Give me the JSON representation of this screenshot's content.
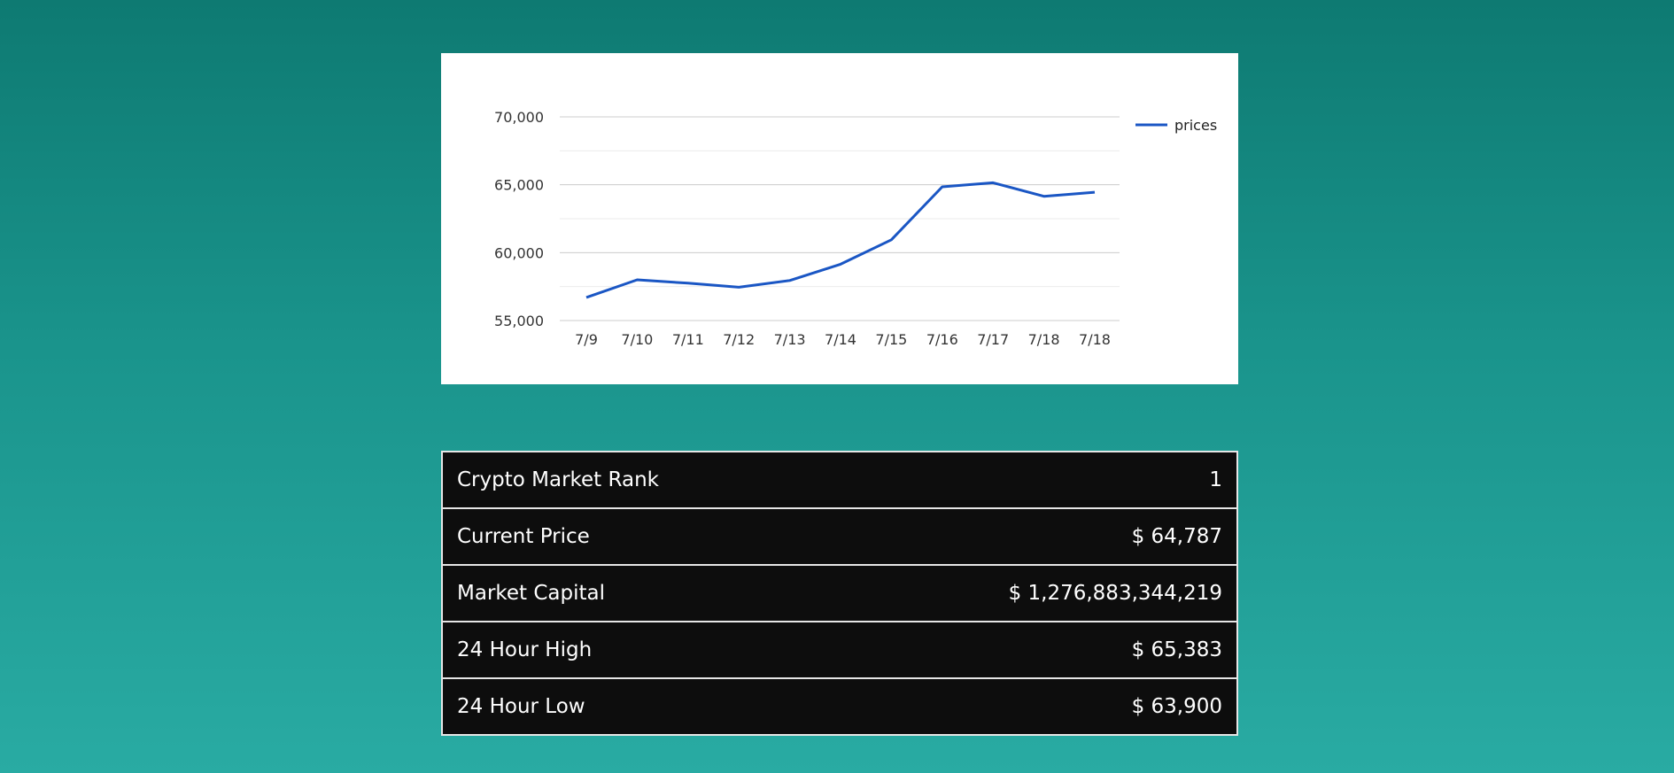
{
  "chart_data": {
    "type": "line",
    "categories": [
      "7/9",
      "7/10",
      "7/11",
      "7/12",
      "7/13",
      "7/14",
      "7/15",
      "7/16",
      "7/17",
      "7/18",
      "7/18"
    ],
    "series": [
      {
        "name": "prices",
        "color": "#1a56c4",
        "values": [
          56700,
          58000,
          57750,
          57450,
          57950,
          59150,
          60950,
          64850,
          65150,
          64150,
          64450
        ]
      }
    ],
    "yticks": [
      "55,000",
      "60,000",
      "65,000",
      "70,000"
    ],
    "ylim": [
      55000,
      70000
    ],
    "grid": true,
    "legend_position": "right"
  },
  "stats": [
    {
      "label": "Crypto Market Rank",
      "value": "1"
    },
    {
      "label": "Current Price",
      "value": "$ 64,787"
    },
    {
      "label": "Market Capital",
      "value": "$ 1,276,883,344,219"
    },
    {
      "label": "24 Hour High",
      "value": "$ 65,383"
    },
    {
      "label": "24 Hour Low",
      "value": "$ 63,900"
    }
  ]
}
